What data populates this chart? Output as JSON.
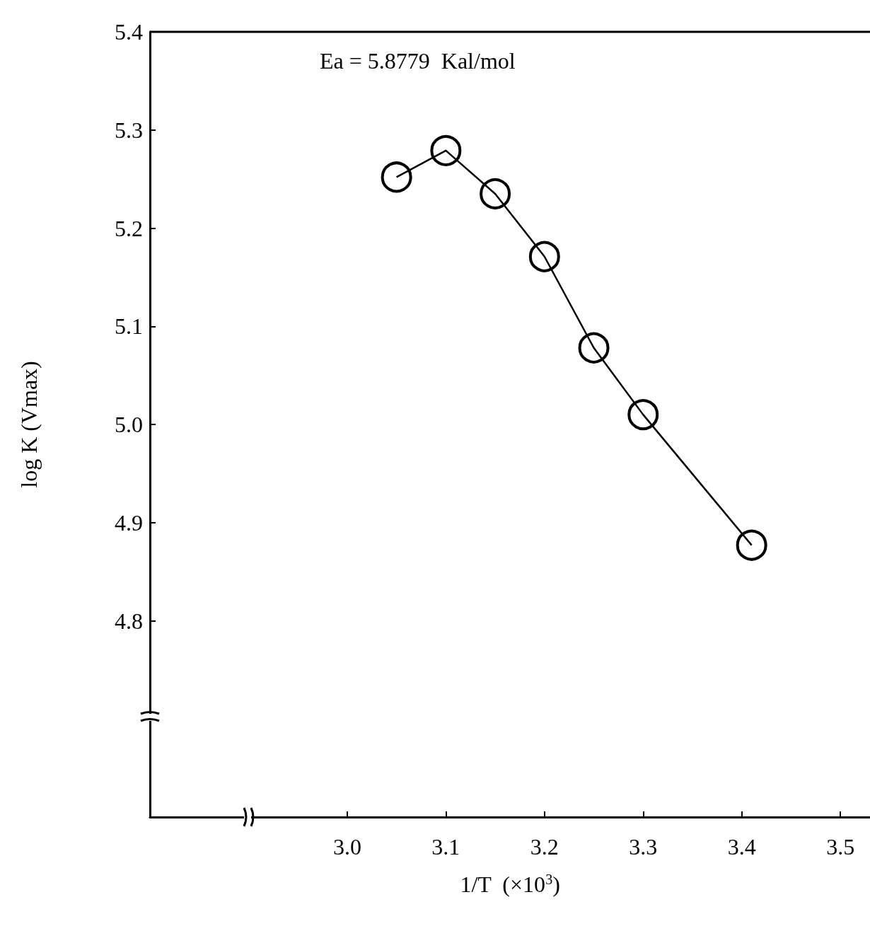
{
  "chart_data": {
    "type": "line",
    "xlabel": "1/T  (×10$^{3}$)",
    "ylabel": "log K (Vmax)",
    "annotations": [
      "Ea = 5.8779  Kal/mol"
    ],
    "x": [
      3.05,
      3.1,
      3.15,
      3.2,
      3.25,
      3.3,
      3.41
    ],
    "series": [
      {
        "color": "#000000",
        "values": [
          5.252,
          5.279,
          5.235,
          5.171,
          5.078,
          5.01,
          4.877
        ]
      }
    ],
    "xlim": [
      2.8,
      3.53
    ],
    "xticks": [
      {
        "value": 3,
        "label": "3.0"
      },
      3.1,
      3.2,
      3.3,
      3.4,
      3.5
    ],
    "ylim": [
      4.6,
      5.4
    ],
    "yticks": [
      4.8,
      4.9,
      {
        "value": 5,
        "label": "5.0"
      },
      5.1,
      5.2,
      5.3,
      5.4
    ],
    "grid": false,
    "legend": false,
    "marker": "circle",
    "line_style": "solid"
  }
}
